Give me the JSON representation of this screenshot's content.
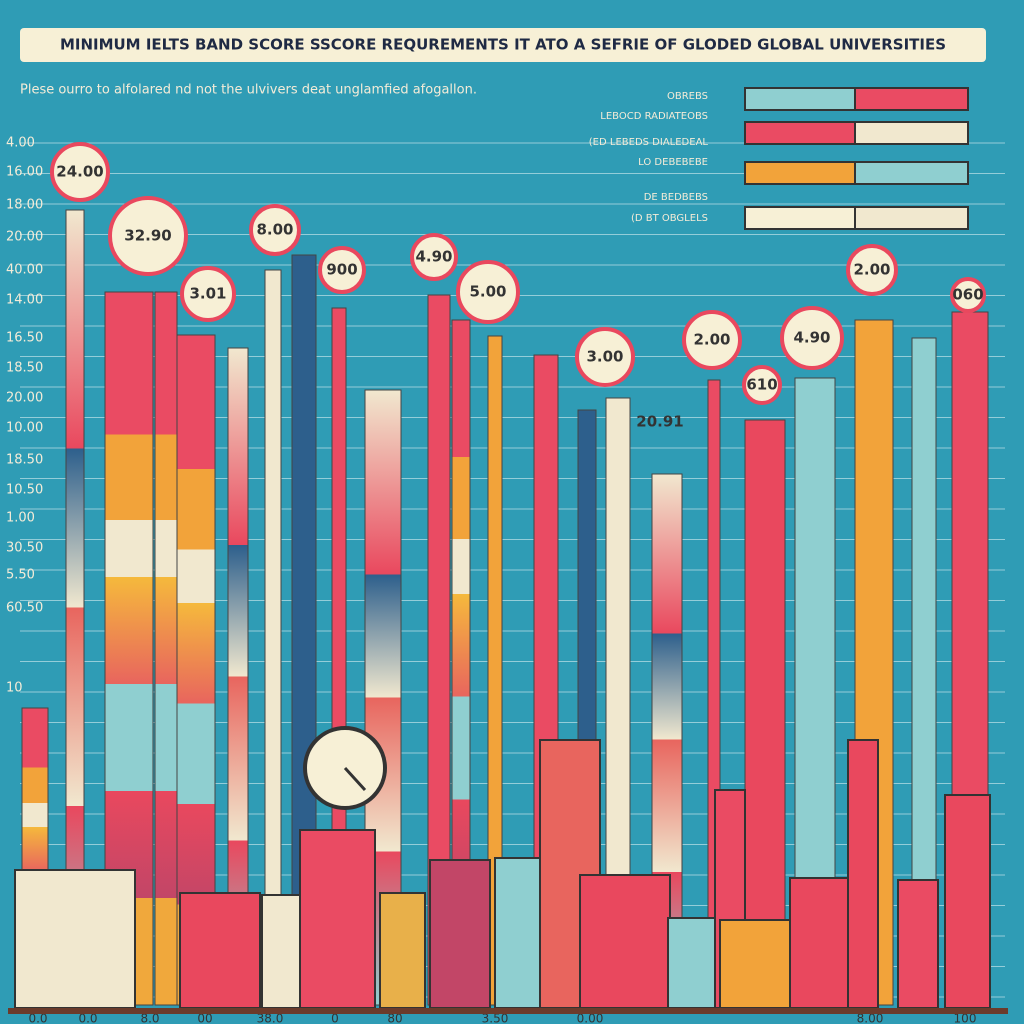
{
  "title": "MINIMUM IELTS BAND SCORE SSCORE REQUREMENTS IT ATO A SEFRIE OF GLODED GLOBAL UNIVERSITIES",
  "note": "Plese ourro to alfolared nd not the ulvivers deat unglamfied afogallon.",
  "legend": [
    "OBREBS",
    "LEBOCD RADIATEOBS",
    "(ED  LEBEDS DIALEDEAL",
    "LO   DEBEBEBE",
    "DE BEDBEBS",
    "(D  BT OBGLELS"
  ],
  "y_labels": [
    "4.00",
    "16.00",
    "18.00",
    "20.00",
    "40.00",
    "14.00",
    "16.50",
    "18.50",
    "20.00",
    "10.00",
    "18.50",
    "10.50",
    "1.00",
    "30.50",
    "5.50",
    "60.50",
    "10"
  ],
  "bubbles": [
    "24.00",
    "32.90",
    "3.01",
    "8.00",
    "900",
    "4.90",
    "5.00",
    "3.00",
    "2.00",
    "4.90",
    "2.00",
    "610",
    "20.91",
    "060"
  ],
  "x_labels": [
    "0.0",
    "0.0",
    "8.0",
    "00",
    "38.0",
    "0",
    "80",
    "3.50",
    "0.00",
    "8.00",
    "100"
  ]
}
